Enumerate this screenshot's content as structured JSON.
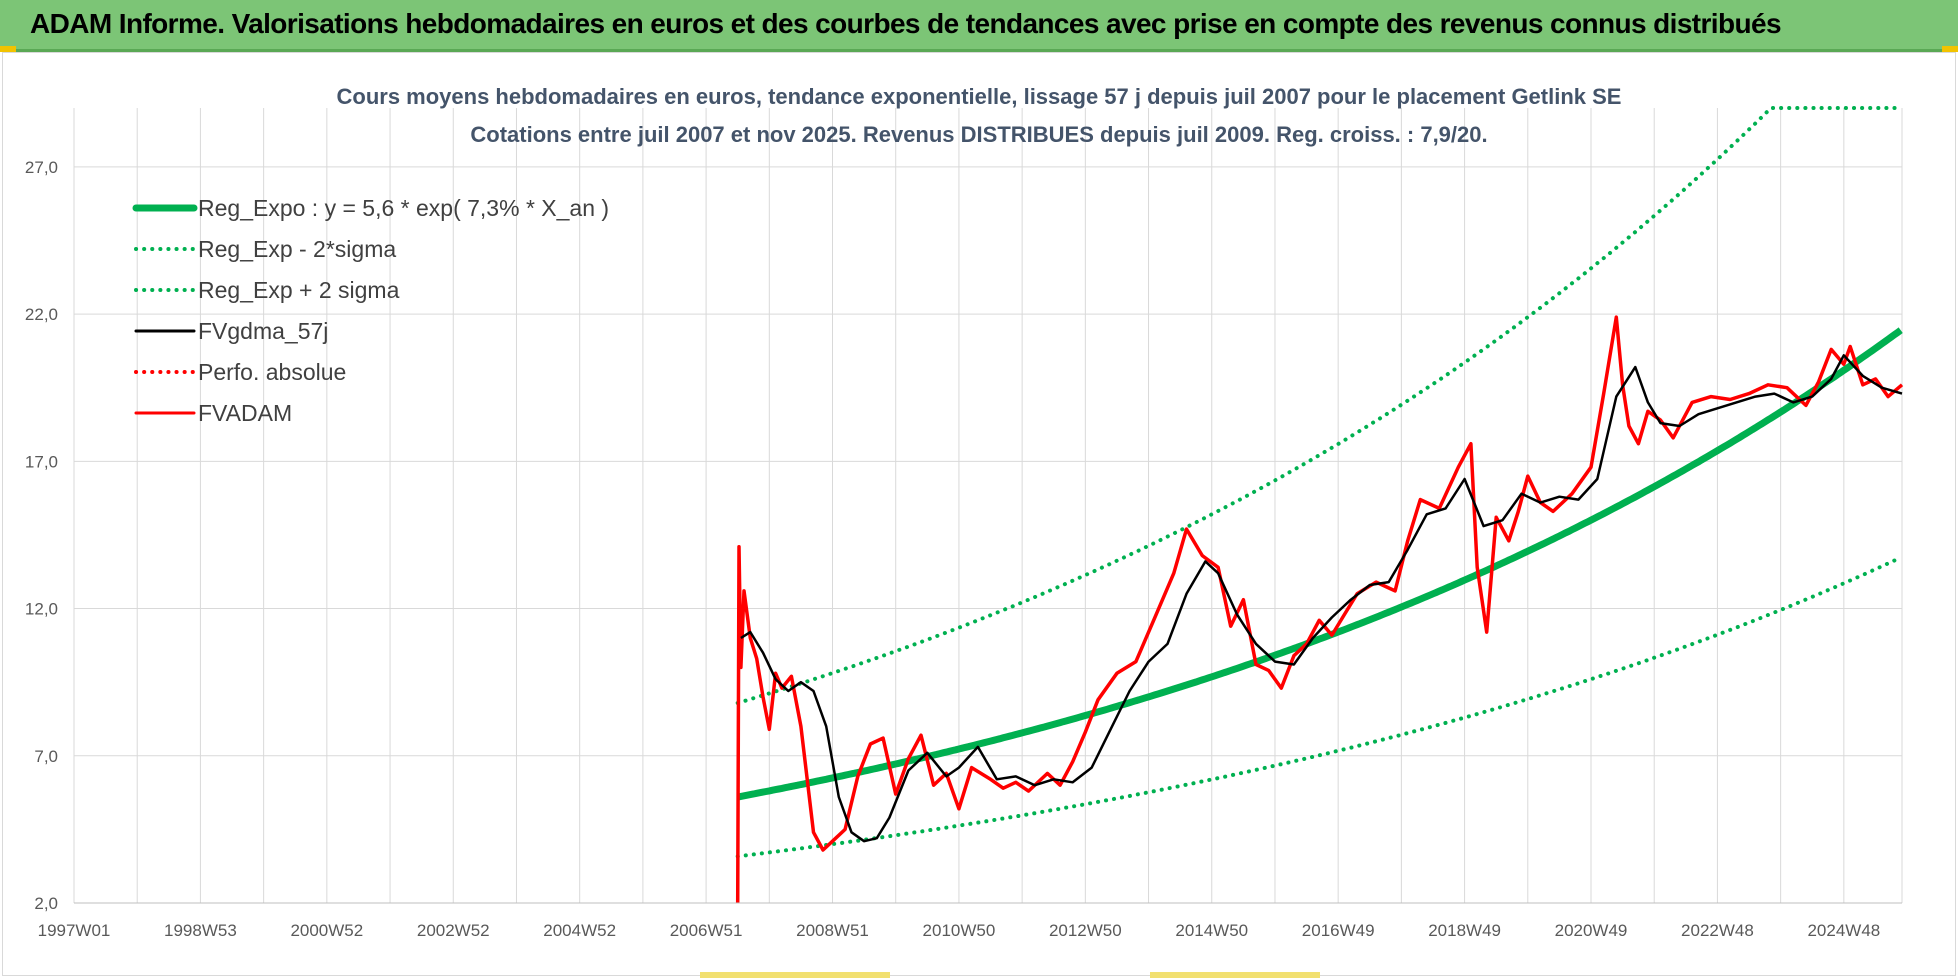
{
  "banner": {
    "title": "ADAM Informe. Valorisations hebdomadaires en euros et des courbes de tendances avec prise en compte des revenus connus distribués"
  },
  "colors": {
    "banner_bg": "#7cc576",
    "trend_green": "#00b050",
    "smooth_black": "#000000",
    "perf_red": "#ff0000",
    "grid": "#d9d9d9"
  },
  "chart_data": {
    "type": "line",
    "title_lines": [
      "Cours moyens hebdomadaires en euros, tendance exponentielle, lissage 57 j depuis juil 2007 pour le placement Getlink SE",
      "Cotations entre juil 2007 et nov 2025. Revenus DISTRIBUES depuis juil 2009. Reg. croiss. : 7,9/20."
    ],
    "x_range": [
      1997.0,
      2025.92
    ],
    "y_range": [
      2.0,
      29.0
    ],
    "x_tick_labels": [
      "1997W01",
      "1998W53",
      "2000W52",
      "2002W52",
      "2004W52",
      "2006W51",
      "2008W51",
      "2010W50",
      "2012W50",
      "2014W50",
      "2016W49",
      "2018W49",
      "2020W49",
      "2022W48",
      "2024W48"
    ],
    "x_tick_years": [
      1997.0,
      1999.0,
      2001.0,
      2003.0,
      2005.0,
      2007.0,
      2009.0,
      2011.0,
      2013.0,
      2015.0,
      2017.0,
      2019.0,
      2021.0,
      2023.0,
      2025.0
    ],
    "y_ticks": [
      2.0,
      7.0,
      12.0,
      17.0,
      22.0,
      27.0
    ],
    "y_tick_labels": [
      "2,0",
      "7,0",
      "12,0",
      "17,0",
      "22,0",
      "27,0"
    ],
    "grid": true,
    "legend_position": "top-left",
    "legend": [
      {
        "label": "Reg_Expo : y = 5,6 * exp( 7,3% *  X_an )",
        "style": "solid-thick",
        "color": "#00b050"
      },
      {
        "label": "Reg_Exp - 2*sigma",
        "style": "dotted",
        "color": "#00b050"
      },
      {
        "label": "Reg_Exp + 2 sigma",
        "style": "dotted",
        "color": "#00b050"
      },
      {
        "label": "FVgdma_57j",
        "style": "solid",
        "color": "#000000"
      },
      {
        "label": "Perfo. absolue",
        "style": "dotted",
        "color": "#ff0000"
      },
      {
        "label": "FVADAM",
        "style": "solid",
        "color": "#ff0000"
      }
    ],
    "trend": {
      "a": 5.6,
      "rate": 0.073,
      "start_year": 2007.5
    },
    "series": [
      {
        "name": "Reg_Expo : y = 5,6 * exp( 7,3% *  X_an )",
        "x": [
          2007.5,
          2009.0,
          2011.0,
          2013.0,
          2015.0,
          2017.0,
          2019.0,
          2021.0,
          2023.0,
          2025.0,
          2025.92
        ],
        "y": [
          5.6,
          6.3,
          7.3,
          8.4,
          9.8,
          11.3,
          13.1,
          15.2,
          17.6,
          20.3,
          21.7
        ]
      },
      {
        "name": "Reg_Exp - 2*sigma",
        "x": [
          2007.5,
          2009.0,
          2011.0,
          2013.0,
          2015.0,
          2017.0,
          2019.0,
          2021.0,
          2023.0,
          2025.0,
          2025.92
        ],
        "y": [
          3.6,
          4.0,
          4.7,
          5.4,
          6.3,
          7.3,
          8.5,
          9.8,
          11.3,
          13.1,
          13.9
        ]
      },
      {
        "name": "Reg_Exp + 2 sigma",
        "x": [
          2007.5,
          2009.0,
          2011.0,
          2013.0,
          2015.0,
          2017.0,
          2019.0,
          2021.0,
          2023.0,
          2025.0,
          2025.92
        ],
        "y": [
          8.8,
          9.9,
          11.5,
          13.3,
          15.4,
          17.9,
          20.7,
          24.0,
          27.8,
          29.0,
          29.0
        ]
      },
      {
        "name": "FVgdma_57j",
        "x": [
          2007.55,
          2007.7,
          2007.9,
          2008.1,
          2008.3,
          2008.5,
          2008.7,
          2008.9,
          2009.1,
          2009.3,
          2009.5,
          2009.7,
          2009.9,
          2010.2,
          2010.5,
          2010.8,
          2011.0,
          2011.3,
          2011.6,
          2011.9,
          2012.2,
          2012.5,
          2012.8,
          2013.1,
          2013.4,
          2013.7,
          2014.0,
          2014.3,
          2014.6,
          2014.9,
          2015.1,
          2015.4,
          2015.7,
          2016.0,
          2016.3,
          2016.6,
          2016.9,
          2017.2,
          2017.5,
          2017.8,
          2018.1,
          2018.4,
          2018.7,
          2019.0,
          2019.3,
          2019.6,
          2019.9,
          2020.2,
          2020.5,
          2020.8,
          2021.1,
          2021.4,
          2021.7,
          2021.9,
          2022.1,
          2022.4,
          2022.7,
          2023.0,
          2023.3,
          2023.6,
          2023.9,
          2024.2,
          2024.5,
          2024.8,
          2025.0,
          2025.3,
          2025.6,
          2025.92
        ],
        "y": [
          11.0,
          11.2,
          10.5,
          9.6,
          9.2,
          9.5,
          9.2,
          8.0,
          5.6,
          4.4,
          4.1,
          4.2,
          4.9,
          6.5,
          7.1,
          6.3,
          6.6,
          7.3,
          6.2,
          6.3,
          6.0,
          6.2,
          6.1,
          6.6,
          7.9,
          9.2,
          10.2,
          10.8,
          12.5,
          13.6,
          13.2,
          11.8,
          10.8,
          10.2,
          10.1,
          11.0,
          11.7,
          12.3,
          12.8,
          12.9,
          14.0,
          15.2,
          15.4,
          16.4,
          14.8,
          15.0,
          15.9,
          15.6,
          15.8,
          15.7,
          16.4,
          19.2,
          20.2,
          19.0,
          18.3,
          18.2,
          18.6,
          18.8,
          19.0,
          19.2,
          19.3,
          19.0,
          19.2,
          19.8,
          20.6,
          19.9,
          19.5,
          19.3
        ]
      },
      {
        "name": "FVADAM",
        "x": [
          2007.5,
          2007.52,
          2007.55,
          2007.6,
          2007.7,
          2007.8,
          2007.9,
          2008.0,
          2008.1,
          2008.2,
          2008.35,
          2008.5,
          2008.7,
          2008.85,
          2009.0,
          2009.2,
          2009.4,
          2009.6,
          2009.8,
          2010.0,
          2010.2,
          2010.4,
          2010.6,
          2010.8,
          2011.0,
          2011.2,
          2011.5,
          2011.7,
          2011.9,
          2012.1,
          2012.4,
          2012.6,
          2012.8,
          2013.0,
          2013.2,
          2013.5,
          2013.8,
          2014.1,
          2014.4,
          2014.6,
          2014.85,
          2015.1,
          2015.3,
          2015.5,
          2015.7,
          2015.9,
          2016.1,
          2016.3,
          2016.5,
          2016.7,
          2016.9,
          2017.1,
          2017.3,
          2017.6,
          2017.9,
          2018.1,
          2018.3,
          2018.6,
          2018.9,
          2019.1,
          2019.2,
          2019.35,
          2019.5,
          2019.7,
          2019.85,
          2020.0,
          2020.2,
          2020.4,
          2020.7,
          2021.0,
          2021.2,
          2021.4,
          2021.5,
          2021.6,
          2021.75,
          2021.9,
          2022.1,
          2022.3,
          2022.6,
          2022.9,
          2023.2,
          2023.5,
          2023.8,
          2024.1,
          2024.4,
          2024.6,
          2024.8,
          2025.0,
          2025.1,
          2025.3,
          2025.5,
          2025.7,
          2025.92
        ],
        "y": [
          2.0,
          14.1,
          10.0,
          12.6,
          11.0,
          10.3,
          9.0,
          7.9,
          9.8,
          9.3,
          9.7,
          8.0,
          4.4,
          3.8,
          4.1,
          4.5,
          6.3,
          7.4,
          7.6,
          5.7,
          6.9,
          7.7,
          6.0,
          6.4,
          5.2,
          6.6,
          6.2,
          5.9,
          6.1,
          5.8,
          6.4,
          6.0,
          6.8,
          7.8,
          8.9,
          9.8,
          10.2,
          11.7,
          13.2,
          14.7,
          13.8,
          13.4,
          11.4,
          12.3,
          10.1,
          9.9,
          9.3,
          10.4,
          10.8,
          11.6,
          11.1,
          11.8,
          12.5,
          12.9,
          12.6,
          14.3,
          15.7,
          15.4,
          16.8,
          17.6,
          13.4,
          11.2,
          15.1,
          14.3,
          15.3,
          16.5,
          15.6,
          15.3,
          15.9,
          16.8,
          19.3,
          21.9,
          19.6,
          18.2,
          17.6,
          18.7,
          18.4,
          17.8,
          19.0,
          19.2,
          19.1,
          19.3,
          19.6,
          19.5,
          18.9,
          19.7,
          20.8,
          20.3,
          20.9,
          19.6,
          19.8,
          19.2,
          19.6
        ]
      }
    ]
  }
}
